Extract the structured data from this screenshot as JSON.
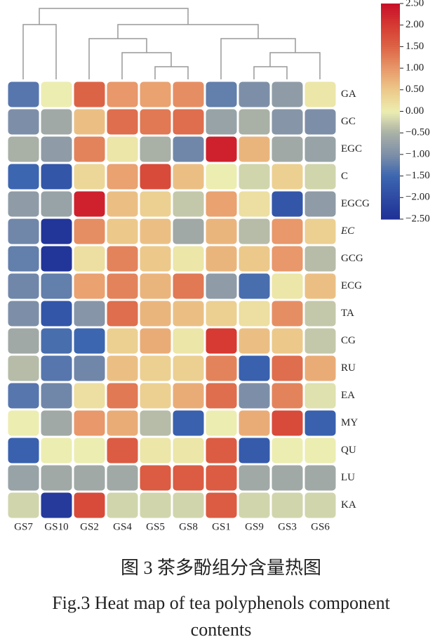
{
  "chart_data": {
    "type": "heatmap",
    "x": [
      "GS7",
      "GS10",
      "GS2",
      "GS4",
      "GS5",
      "GS8",
      "GS1",
      "GS9",
      "GS3",
      "GS6"
    ],
    "y": [
      "GA",
      "GC",
      "EGC",
      "C",
      "EGCG",
      "EC",
      "GCG",
      "ECG",
      "TA",
      "CG",
      "RU",
      "EA",
      "MY",
      "QU",
      "LU",
      "KA"
    ],
    "values": [
      [
        -1.3,
        0,
        1.5,
        1.0,
        0.9,
        1.1,
        -1.2,
        -1.0,
        -0.8,
        0.1
      ],
      [
        -1.0,
        -0.6,
        0.6,
        1.4,
        1.3,
        1.4,
        -0.7,
        -0.5,
        -0.9,
        -1.0
      ],
      [
        -0.5,
        -0.8,
        1.2,
        0.1,
        -0.5,
        -1.1,
        2.3,
        0.7,
        -0.6,
        -0.7
      ],
      [
        -1.5,
        -1.8,
        0.3,
        0.9,
        1.8,
        0.6,
        0.0,
        -0.2,
        0.4,
        -0.2
      ],
      [
        -0.8,
        -0.7,
        2.3,
        0.6,
        0.4,
        -0.3,
        0.9,
        0.2,
        -1.8,
        -0.8
      ],
      [
        -1.1,
        -2.4,
        1.1,
        0.5,
        0.6,
        -0.6,
        0.7,
        -0.4,
        1.0,
        0.4
      ],
      [
        -1.2,
        -2.4,
        0.2,
        1.2,
        0.5,
        0.1,
        0.7,
        0.5,
        1.0,
        -0.4
      ],
      [
        -1.1,
        -1.2,
        0.9,
        1.2,
        0.7,
        1.3,
        -0.8,
        -1.4,
        0.1,
        0.6
      ],
      [
        -1.0,
        -1.8,
        -0.9,
        1.4,
        0.7,
        0.6,
        0.4,
        0.2,
        1.1,
        -0.3
      ],
      [
        -0.6,
        -1.4,
        -1.5,
        0.4,
        0.8,
        0.1,
        2.0,
        0.6,
        0.5,
        -0.3
      ],
      [
        -0.4,
        -1.3,
        -1.1,
        0.6,
        0.4,
        0.4,
        1.2,
        -1.6,
        1.4,
        0.8
      ],
      [
        -1.3,
        -1.1,
        0.2,
        1.3,
        0.4,
        0.8,
        1.4,
        -1.0,
        1.2,
        -0.1
      ],
      [
        0.0,
        -0.6,
        1.0,
        0.8,
        -0.4,
        -1.6,
        0.0,
        0.8,
        1.8,
        -1.6
      ],
      [
        -1.6,
        0.0,
        0.0,
        1.6,
        0.1,
        0.1,
        1.6,
        -1.7,
        0.0,
        0.0
      ],
      [
        -0.7,
        -0.6,
        -0.6,
        -0.6,
        1.6,
        1.6,
        1.6,
        -0.6,
        -0.6,
        -0.6
      ],
      [
        -0.2,
        -2.3,
        1.8,
        -0.2,
        -0.2,
        -0.2,
        1.6,
        -0.2,
        -0.2,
        -0.2
      ]
    ],
    "zlim": [
      -2.5,
      2.5
    ],
    "zticks": [
      {
        "value": 2.5,
        "label": "2.50"
      },
      {
        "value": 2,
        "label": "2.00"
      },
      {
        "value": 1.5,
        "label": "1.50"
      },
      {
        "value": 1,
        "label": "1.00"
      },
      {
        "value": 0.5,
        "label": "0.50"
      },
      {
        "value": 0,
        "label": "0.00"
      },
      {
        "value": -0.5,
        "label": "−0.50"
      },
      {
        "value": -1,
        "label": "−1.00"
      },
      {
        "value": -1.5,
        "label": "−1.50"
      },
      {
        "value": -2,
        "label": "−2.00"
      },
      {
        "value": -2.5,
        "label": "−2.50"
      }
    ],
    "colorscale": [
      [
        -2.5,
        "#1f2f96"
      ],
      [
        -1.5,
        "#3c66b0"
      ],
      [
        -1,
        "#7d8fa8"
      ],
      [
        -0.5,
        "#a9b0a6"
      ],
      [
        0,
        "#ecedb0"
      ],
      [
        0.5,
        "#ecc98a"
      ],
      [
        1,
        "#e8986a"
      ],
      [
        1.5,
        "#dc6446"
      ],
      [
        2,
        "#d63a32"
      ],
      [
        2.5,
        "#c8102a"
      ]
    ],
    "caption_cn": "图 3  茶多酚组分含量热图",
    "caption_en": "Fig.3 Heat map of tea polyphenols component contents"
  }
}
